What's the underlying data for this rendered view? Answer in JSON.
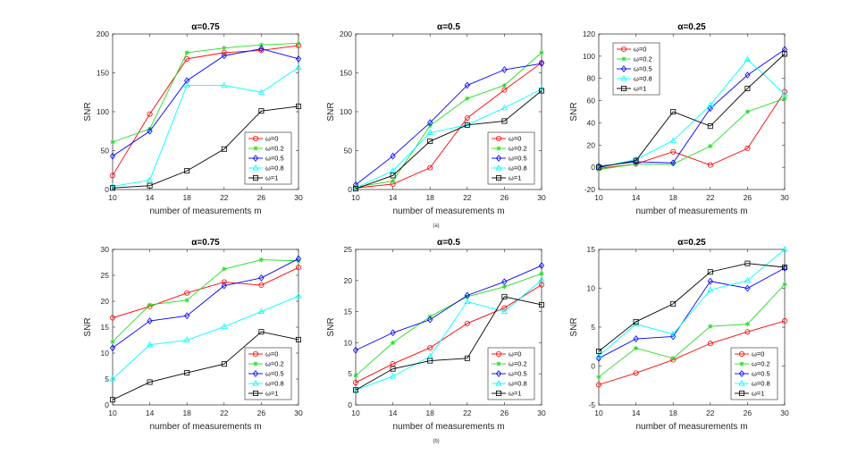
{
  "colors": {
    "omega0": "#ff0000",
    "omega02": "#22dd22",
    "omega05": "#0000ff",
    "omega08": "#00ffff",
    "omega1": "#000000"
  },
  "captions": {
    "a": "(a)",
    "b": "(b)"
  },
  "chart_data": [
    {
      "id": "a1",
      "type": "line",
      "title": "α=0.75",
      "xlabel": "number of measurements m",
      "ylabel": "SNR",
      "x": [
        10,
        14,
        18,
        22,
        26,
        30
      ],
      "xlim": [
        10,
        30
      ],
      "ylim": [
        0,
        200
      ],
      "yticks": [
        0,
        50,
        100,
        150,
        200
      ],
      "legend": "bottom-right",
      "series": [
        {
          "name": "ω=0",
          "values": [
            18,
            97,
            168,
            176,
            179,
            185
          ]
        },
        {
          "name": "ω=0.2",
          "values": [
            61,
            78,
            176,
            182,
            186,
            188
          ]
        },
        {
          "name": "ω=0.5",
          "values": [
            43,
            75,
            140,
            172,
            181,
            168
          ]
        },
        {
          "name": "ω=0.8",
          "values": [
            4,
            12,
            134,
            134,
            125,
            157
          ]
        },
        {
          "name": "ω=1",
          "values": [
            2,
            5,
            24,
            52,
            101,
            107
          ]
        }
      ]
    },
    {
      "id": "a2",
      "type": "line",
      "title": "α=0.5",
      "xlabel": "number of measurements m",
      "ylabel": "SNR",
      "x": [
        10,
        14,
        18,
        22,
        26,
        30
      ],
      "xlim": [
        10,
        30
      ],
      "ylim": [
        0,
        200
      ],
      "yticks": [
        0,
        50,
        100,
        150,
        200
      ],
      "legend": "bottom-right",
      "series": [
        {
          "name": "ω=0",
          "values": [
            2,
            7,
            28,
            92,
            128,
            163
          ]
        },
        {
          "name": "ω=0.2",
          "values": [
            3,
            11,
            82,
            117,
            134,
            176
          ]
        },
        {
          "name": "ω=0.5",
          "values": [
            6,
            43,
            86,
            134,
            154,
            162
          ]
        },
        {
          "name": "ω=0.8",
          "values": [
            2,
            24,
            73,
            83,
            105,
            129
          ]
        },
        {
          "name": "ω=1",
          "values": [
            1,
            18,
            62,
            83,
            88,
            127
          ]
        }
      ]
    },
    {
      "id": "a3",
      "type": "line",
      "title": "α=0.25",
      "xlabel": "number of measurements m",
      "ylabel": "SNR",
      "x": [
        10,
        14,
        18,
        22,
        26,
        30
      ],
      "xlim": [
        10,
        30
      ],
      "ylim": [
        -20,
        120
      ],
      "yticks": [
        -20,
        0,
        20,
        40,
        60,
        80,
        100,
        120
      ],
      "legend": "top-left",
      "series": [
        {
          "name": "ω=0",
          "values": [
            -1,
            3,
            14,
            2,
            17,
            68
          ]
        },
        {
          "name": "ω=0.2",
          "values": [
            -2,
            3,
            3,
            19,
            50,
            62
          ]
        },
        {
          "name": "ω=0.5",
          "values": [
            1,
            5,
            4,
            53,
            83,
            106
          ]
        },
        {
          "name": "ω=0.8",
          "values": [
            0,
            7,
            24,
            56,
            97,
            66
          ]
        },
        {
          "name": "ω=1",
          "values": [
            0,
            6,
            50,
            37,
            71,
            102
          ]
        }
      ]
    },
    {
      "id": "b1",
      "type": "line",
      "title": "α=0.75",
      "xlabel": "number of measurements m",
      "ylabel": "SNR",
      "x": [
        10,
        14,
        18,
        22,
        26,
        30
      ],
      "xlim": [
        10,
        30
      ],
      "ylim": [
        0,
        30
      ],
      "yticks": [
        0,
        5,
        10,
        15,
        20,
        25,
        30
      ],
      "legend": "bottom-right",
      "series": [
        {
          "name": "ω=0",
          "values": [
            16.8,
            19.0,
            21.6,
            23.7,
            23.1,
            26.5
          ]
        },
        {
          "name": "ω=0.2",
          "values": [
            12.2,
            19.3,
            20.2,
            26.2,
            28.0,
            27.8
          ]
        },
        {
          "name": "ω=0.5",
          "values": [
            11.0,
            16.2,
            17.2,
            23.0,
            24.5,
            28.2
          ]
        },
        {
          "name": "ω=0.8",
          "values": [
            5.0,
            11.6,
            12.5,
            15.1,
            18.0,
            21.0
          ]
        },
        {
          "name": "ω=1",
          "values": [
            1.0,
            4.4,
            6.2,
            7.9,
            14.1,
            12.6
          ]
        }
      ]
    },
    {
      "id": "b2",
      "type": "line",
      "title": "α=0.5",
      "xlabel": "number of measurements m",
      "ylabel": "SNR",
      "x": [
        10,
        14,
        18,
        22,
        26,
        30
      ],
      "xlim": [
        10,
        30
      ],
      "ylim": [
        0,
        25
      ],
      "yticks": [
        0,
        5,
        10,
        15,
        20,
        25
      ],
      "legend": "bottom-right",
      "series": [
        {
          "name": "ω=0",
          "values": [
            3.6,
            6.6,
            9.2,
            13.1,
            15.6,
            19.3
          ]
        },
        {
          "name": "ω=0.2",
          "values": [
            4.7,
            10.0,
            14.2,
            17.4,
            19.0,
            21.1
          ]
        },
        {
          "name": "ω=0.5",
          "values": [
            8.8,
            11.6,
            13.7,
            17.6,
            19.8,
            22.4
          ]
        },
        {
          "name": "ω=0.8",
          "values": [
            2.4,
            4.6,
            7.8,
            16.6,
            15.0,
            20.1
          ]
        },
        {
          "name": "ω=1",
          "values": [
            2.4,
            5.8,
            7.1,
            7.5,
            17.4,
            16.1
          ]
        }
      ]
    },
    {
      "id": "b3",
      "type": "line",
      "title": "α=0.25",
      "xlabel": "number of measurements m",
      "ylabel": "SNR",
      "x": [
        10,
        14,
        18,
        22,
        26,
        30
      ],
      "xlim": [
        10,
        30
      ],
      "ylim": [
        -5,
        15
      ],
      "yticks": [
        -5,
        0,
        5,
        10,
        15
      ],
      "legend": "bottom-right",
      "series": [
        {
          "name": "ω=0",
          "values": [
            -2.4,
            -0.9,
            0.8,
            2.9,
            4.4,
            5.8
          ]
        },
        {
          "name": "ω=0.2",
          "values": [
            -1.4,
            2.3,
            1.0,
            5.1,
            5.4,
            10.5
          ]
        },
        {
          "name": "ω=0.5",
          "values": [
            1.0,
            3.5,
            3.8,
            10.9,
            10.0,
            12.6
          ]
        },
        {
          "name": "ω=0.8",
          "values": [
            1.3,
            5.4,
            4.1,
            9.8,
            11.0,
            15.0
          ]
        },
        {
          "name": "ω=1",
          "values": [
            1.9,
            5.7,
            8.0,
            12.1,
            13.2,
            12.7
          ]
        }
      ]
    }
  ]
}
